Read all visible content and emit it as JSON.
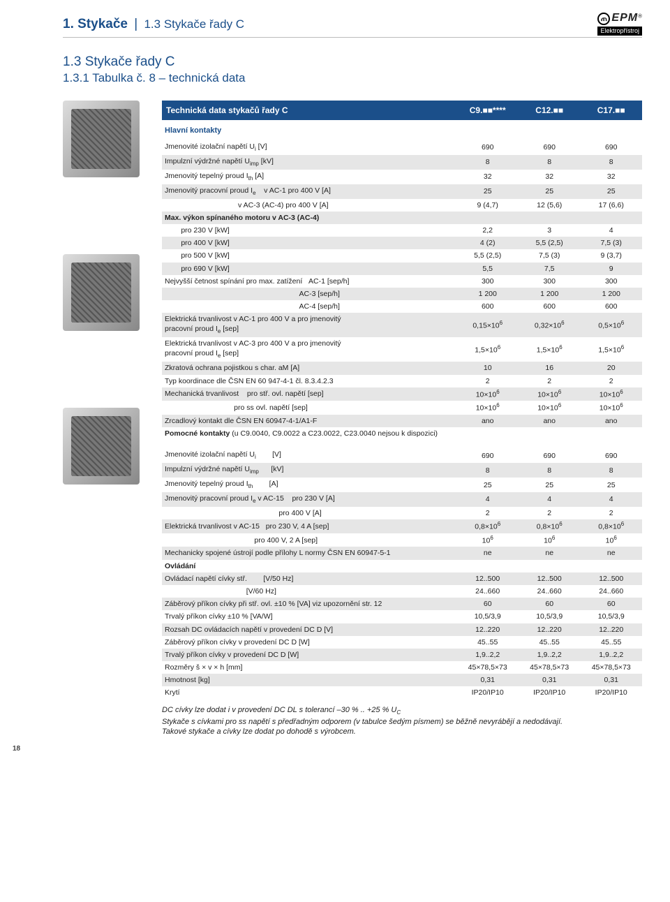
{
  "crumb_main": "1. Stykače",
  "crumb_sub": "1.3 Stykače řady C",
  "logo_brand": "EPM",
  "logo_tag": "Elektropřístroj",
  "heading1": "1.3 Stykače řady C",
  "heading2": "1.3.1 Tabulka č. 8 – technická data",
  "table_title": "Technická data stykačů řady C",
  "cols": [
    "C9.■■****",
    "C12.■■",
    "C17.■■"
  ],
  "sec1_title": "Hlavní kontakty",
  "rows1": [
    {
      "label": "Jmenovité izolační napětí U<sub>i</sub> [V]",
      "v": [
        "690",
        "690",
        "690"
      ],
      "shade": false
    },
    {
      "label": "Impulzní výdržné napětí U<sub>imp</sub> [kV]",
      "v": [
        "8",
        "8",
        "8"
      ],
      "shade": true
    },
    {
      "label": "Jmenovitý tepelný proud I<sub>th</sub> [A]",
      "v": [
        "32",
        "32",
        "32"
      ],
      "shade": false
    },
    {
      "label": "Jmenovitý pracovní proud I<sub>e</sub>&nbsp;&nbsp;&nbsp;&nbsp;v AC-1  pro 400 V [A]",
      "v": [
        "25",
        "25",
        "25"
      ],
      "shade": true
    },
    {
      "label": "&nbsp;&nbsp;&nbsp;&nbsp;&nbsp;&nbsp;&nbsp;&nbsp;&nbsp;&nbsp;&nbsp;&nbsp;&nbsp;&nbsp;&nbsp;&nbsp;&nbsp;&nbsp;&nbsp;&nbsp;&nbsp;&nbsp;&nbsp;&nbsp;&nbsp;&nbsp;&nbsp;&nbsp;&nbsp;&nbsp;&nbsp;&nbsp;&nbsp;&nbsp;&nbsp;&nbsp;v AC-3 (AC-4) pro 400 V [A]",
      "v": [
        "9 (4,7)",
        "12 (5,6)",
        "17 (6,6)"
      ],
      "shade": false
    },
    {
      "label": "<b>Max. výkon spínaného motoru v AC-3 (AC-4)</b>",
      "v": [
        "",
        "",
        ""
      ],
      "shade": true
    },
    {
      "label": "&nbsp;&nbsp;&nbsp;&nbsp;&nbsp;&nbsp;&nbsp;&nbsp;pro 230 V [kW]",
      "v": [
        "2,2",
        "3",
        "4"
      ],
      "shade": false
    },
    {
      "label": "&nbsp;&nbsp;&nbsp;&nbsp;&nbsp;&nbsp;&nbsp;&nbsp;pro 400 V [kW]",
      "v": [
        "4 (2)",
        "5,5 (2,5)",
        "7,5 (3)"
      ],
      "shade": true
    },
    {
      "label": "&nbsp;&nbsp;&nbsp;&nbsp;&nbsp;&nbsp;&nbsp;&nbsp;pro 500 V [kW]",
      "v": [
        "5,5 (2,5)",
        "7,5 (3)",
        "9 (3,7)"
      ],
      "shade": false
    },
    {
      "label": "&nbsp;&nbsp;&nbsp;&nbsp;&nbsp;&nbsp;&nbsp;&nbsp;pro 690 V [kW]",
      "v": [
        "5,5",
        "7,5",
        "9"
      ],
      "shade": true
    },
    {
      "label": "Nejvyšší četnost spínání pro max. zatížení&nbsp;&nbsp;&nbsp;AC-1 [sep/h]",
      "v": [
        "300",
        "300",
        "300"
      ],
      "shade": false
    },
    {
      "label": "&nbsp;&nbsp;&nbsp;&nbsp;&nbsp;&nbsp;&nbsp;&nbsp;&nbsp;&nbsp;&nbsp;&nbsp;&nbsp;&nbsp;&nbsp;&nbsp;&nbsp;&nbsp;&nbsp;&nbsp;&nbsp;&nbsp;&nbsp;&nbsp;&nbsp;&nbsp;&nbsp;&nbsp;&nbsp;&nbsp;&nbsp;&nbsp;&nbsp;&nbsp;&nbsp;&nbsp;&nbsp;&nbsp;&nbsp;&nbsp;&nbsp;&nbsp;&nbsp;&nbsp;&nbsp;&nbsp;&nbsp;&nbsp;&nbsp;&nbsp;&nbsp;&nbsp;&nbsp;&nbsp;&nbsp;&nbsp;&nbsp;&nbsp;&nbsp;&nbsp;&nbsp;&nbsp;&nbsp;&nbsp;&nbsp;&nbsp;AC-3 [sep/h]",
      "v": [
        "1 200",
        "1 200",
        "1 200"
      ],
      "shade": true
    },
    {
      "label": "&nbsp;&nbsp;&nbsp;&nbsp;&nbsp;&nbsp;&nbsp;&nbsp;&nbsp;&nbsp;&nbsp;&nbsp;&nbsp;&nbsp;&nbsp;&nbsp;&nbsp;&nbsp;&nbsp;&nbsp;&nbsp;&nbsp;&nbsp;&nbsp;&nbsp;&nbsp;&nbsp;&nbsp;&nbsp;&nbsp;&nbsp;&nbsp;&nbsp;&nbsp;&nbsp;&nbsp;&nbsp;&nbsp;&nbsp;&nbsp;&nbsp;&nbsp;&nbsp;&nbsp;&nbsp;&nbsp;&nbsp;&nbsp;&nbsp;&nbsp;&nbsp;&nbsp;&nbsp;&nbsp;&nbsp;&nbsp;&nbsp;&nbsp;&nbsp;&nbsp;&nbsp;&nbsp;&nbsp;&nbsp;&nbsp;&nbsp;AC-4 [sep/h]",
      "v": [
        "600",
        "600",
        "600"
      ],
      "shade": false
    },
    {
      "label": "Elektrická trvanlivost v AC-1 pro 400 V a pro jmenovitý<br>pracovní proud I<sub>e</sub> [sep]",
      "v": [
        "0,15×10<sup>6</sup>",
        "0,32×10<sup>6</sup>",
        "0,5×10<sup>6</sup>"
      ],
      "shade": true
    },
    {
      "label": "Elektrická trvanlivost v AC-3 pro 400 V a pro jmenovitý<br>pracovní proud I<sub>e</sub> [sep]",
      "v": [
        "1,5×10<sup>6</sup>",
        "1,5×10<sup>6</sup>",
        "1,5×10<sup>6</sup>"
      ],
      "shade": false
    },
    {
      "label": "Zkratová ochrana pojistkou s char. aM [A]",
      "v": [
        "10",
        "16",
        "20"
      ],
      "shade": true
    },
    {
      "label": "Typ koordinace dle ČSN EN 60 947-4-1 čl. 8.3.4.2.3",
      "v": [
        "2",
        "2",
        "2"
      ],
      "shade": false
    },
    {
      "label": "Mechanická trvanlivost&nbsp;&nbsp;&nbsp;&nbsp;pro stř. ovl. napětí [sep]",
      "v": [
        "10×10<sup>6</sup>",
        "10×10<sup>6</sup>",
        "10×10<sup>6</sup>"
      ],
      "shade": true
    },
    {
      "label": "&nbsp;&nbsp;&nbsp;&nbsp;&nbsp;&nbsp;&nbsp;&nbsp;&nbsp;&nbsp;&nbsp;&nbsp;&nbsp;&nbsp;&nbsp;&nbsp;&nbsp;&nbsp;&nbsp;&nbsp;&nbsp;&nbsp;&nbsp;&nbsp;&nbsp;&nbsp;&nbsp;&nbsp;&nbsp;&nbsp;&nbsp;&nbsp;&nbsp;&nbsp;pro ss  ovl. napětí [sep]",
      "v": [
        "10×10<sup>6</sup>",
        "10×10<sup>6</sup>",
        "10×10<sup>6</sup>"
      ],
      "shade": false
    },
    {
      "label": "Zrcadlový kontakt dle ČSN EN 60947-4-1/A1-F",
      "v": [
        "ano",
        "ano",
        "ano"
      ],
      "shade": true
    },
    {
      "label": "<b>Pomocné kontakty</b> (u C9.0040, C9.0022 a C23.0022, C23.0040 nejsou k dispozici)",
      "v": [
        "",
        "",
        ""
      ],
      "shade": false
    }
  ],
  "rows2": [
    {
      "label": "Jmenovité izolační napětí U<sub>i</sub>&nbsp;&nbsp;&nbsp;&nbsp;&nbsp;&nbsp;&nbsp;&nbsp;[V]",
      "v": [
        "690",
        "690",
        "690"
      ],
      "shade": false
    },
    {
      "label": "Impulzní výdržné napětí U<sub>imp</sub>&nbsp;&nbsp;&nbsp;&nbsp;&nbsp;&nbsp;[kV]",
      "v": [
        "8",
        "8",
        "8"
      ],
      "shade": true
    },
    {
      "label": "Jmenovitý tepelný proud I<sub>th</sub>&nbsp;&nbsp;&nbsp;&nbsp;&nbsp;&nbsp;&nbsp;&nbsp;[A]",
      "v": [
        "25",
        "25",
        "25"
      ],
      "shade": false
    },
    {
      "label": "Jmenovitý pracovní proud I<sub>e</sub> v AC-15&nbsp;&nbsp;&nbsp;&nbsp;pro 230 V [A]",
      "v": [
        "4",
        "4",
        "4"
      ],
      "shade": true
    },
    {
      "label": "&nbsp;&nbsp;&nbsp;&nbsp;&nbsp;&nbsp;&nbsp;&nbsp;&nbsp;&nbsp;&nbsp;&nbsp;&nbsp;&nbsp;&nbsp;&nbsp;&nbsp;&nbsp;&nbsp;&nbsp;&nbsp;&nbsp;&nbsp;&nbsp;&nbsp;&nbsp;&nbsp;&nbsp;&nbsp;&nbsp;&nbsp;&nbsp;&nbsp;&nbsp;&nbsp;&nbsp;&nbsp;&nbsp;&nbsp;&nbsp;&nbsp;&nbsp;&nbsp;&nbsp;&nbsp;&nbsp;&nbsp;&nbsp;&nbsp;&nbsp;&nbsp;&nbsp;&nbsp;&nbsp;&nbsp;&nbsp;pro 400 V [A]",
      "v": [
        "2",
        "2",
        "2"
      ],
      "shade": false
    },
    {
      "label": "Elektrická trvanlivost v AC-15&nbsp;&nbsp;&nbsp;pro 230 V, 4 A [sep]",
      "v": [
        "0,8×10<sup>6</sup>",
        "0,8×10<sup>6</sup>",
        "0,8×10<sup>6</sup>"
      ],
      "shade": true
    },
    {
      "label": "&nbsp;&nbsp;&nbsp;&nbsp;&nbsp;&nbsp;&nbsp;&nbsp;&nbsp;&nbsp;&nbsp;&nbsp;&nbsp;&nbsp;&nbsp;&nbsp;&nbsp;&nbsp;&nbsp;&nbsp;&nbsp;&nbsp;&nbsp;&nbsp;&nbsp;&nbsp;&nbsp;&nbsp;&nbsp;&nbsp;&nbsp;&nbsp;&nbsp;&nbsp;&nbsp;&nbsp;&nbsp;&nbsp;&nbsp;&nbsp;&nbsp;&nbsp;&nbsp;&nbsp;pro 400 V, 2 A [sep]",
      "v": [
        "10<sup>6</sup>",
        "10<sup>6</sup>",
        "10<sup>6</sup>"
      ],
      "shade": false
    },
    {
      "label": "Mechanicky spojené ústrojí podle přílohy L normy ČSN EN 60947-5-1",
      "v": [
        "ne",
        "ne",
        "ne"
      ],
      "shade": true
    },
    {
      "label": "<b>Ovládání</b>",
      "v": [
        "",
        "",
        ""
      ],
      "shade": false
    },
    {
      "label": "Ovládací napětí cívky stř.&nbsp;&nbsp;&nbsp;&nbsp;&nbsp;&nbsp;&nbsp;&nbsp;[V/50 Hz]",
      "v": [
        "12..500",
        "12..500",
        "12..500"
      ],
      "shade": true
    },
    {
      "label": "&nbsp;&nbsp;&nbsp;&nbsp;&nbsp;&nbsp;&nbsp;&nbsp;&nbsp;&nbsp;&nbsp;&nbsp;&nbsp;&nbsp;&nbsp;&nbsp;&nbsp;&nbsp;&nbsp;&nbsp;&nbsp;&nbsp;&nbsp;&nbsp;&nbsp;&nbsp;&nbsp;&nbsp;&nbsp;&nbsp;&nbsp;&nbsp;&nbsp;&nbsp;&nbsp;&nbsp;&nbsp;&nbsp;&nbsp;&nbsp;[V/60 Hz]",
      "v": [
        "24..660",
        "24..660",
        "24..660"
      ],
      "shade": false
    },
    {
      "label": "Záběrový příkon cívky při stř. ovl. ±10 % [VA] viz upozornění str. 12",
      "v": [
        "60",
        "60",
        "60"
      ],
      "shade": true
    },
    {
      "label": "Trvalý příkon cívky ±10 % [VA/W]",
      "v": [
        "10,5/3,9",
        "10,5/3,9",
        "10,5/3,9"
      ],
      "shade": false
    },
    {
      "label": "Rozsah DC ovládacích napětí v provedení DC D [V]",
      "v": [
        "12..220",
        "12..220",
        "12..220"
      ],
      "shade": true
    },
    {
      "label": "Záběrový příkon cívky v provedení DC D [W]",
      "v": [
        "45..55",
        "45..55",
        "45..55"
      ],
      "shade": false
    },
    {
      "label": "Trvalý příkon cívky v provedení DC D [W]",
      "v": [
        "1,9..2,2",
        "1,9..2,2",
        "1,9..2,2"
      ],
      "shade": true
    },
    {
      "label": "Rozměry š × v × h [mm]",
      "v": [
        "45×78,5×73",
        "45×78,5×73",
        "45×78,5×73"
      ],
      "shade": false
    },
    {
      "label": "Hmotnost [kg]",
      "v": [
        "0,31",
        "0,31",
        "0,31"
      ],
      "shade": true
    },
    {
      "label": "Krytí",
      "v": [
        "IP20/IP10",
        "IP20/IP10",
        "IP20/IP10"
      ],
      "shade": false
    }
  ],
  "note": "DC cívky lze dodat i v provedení DC DL s tolerancí –30 % .. +25 % U<sub>C</sub><br>Stykače s cívkami pro ss napětí s předřadným odporem (v tabulce šedým písmem) se běžně nevyrábějí a nedodávají.<br>Takové stykače a cívky lze dodat po dohodě s výrobcem.",
  "page_number": "18",
  "colors": {
    "brand": "#1b4f8a",
    "shade": "#e6e6e6"
  }
}
